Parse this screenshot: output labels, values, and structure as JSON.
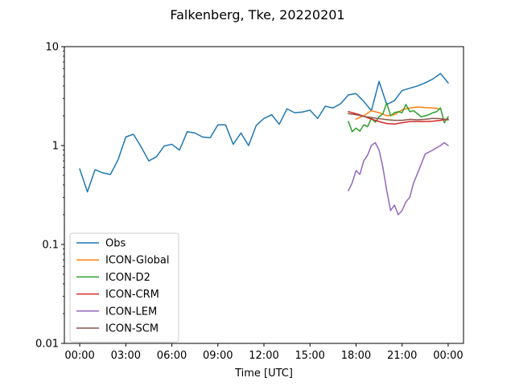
{
  "chart_data": {
    "type": "line",
    "title": "Falkenberg, Tke, 20220201",
    "xlabel": "Time [UTC]",
    "ylabel": "",
    "x_unit": "hours",
    "xlim": [
      -1.0,
      25.0
    ],
    "ylim": [
      0.01,
      10
    ],
    "yscale": "log",
    "xticks": [
      {
        "value": 0,
        "label": "00:00"
      },
      {
        "value": 3,
        "label": "03:00"
      },
      {
        "value": 6,
        "label": "06:00"
      },
      {
        "value": 9,
        "label": "09:00"
      },
      {
        "value": 12,
        "label": "12:00"
      },
      {
        "value": 15,
        "label": "15:00"
      },
      {
        "value": 18,
        "label": "18:00"
      },
      {
        "value": 21,
        "label": "21:00"
      },
      {
        "value": 24,
        "label": "00:00"
      }
    ],
    "yticks": [
      {
        "value": 0.01,
        "label": "0.01"
      },
      {
        "value": 0.1,
        "label": "0.1"
      },
      {
        "value": 1,
        "label": "1"
      },
      {
        "value": 10,
        "label": "10"
      }
    ],
    "grid": false,
    "legend_position": "lower-left",
    "series": [
      {
        "name": "Obs",
        "color": "#1f77b4",
        "x": [
          0.0,
          0.5,
          1.0,
          1.5,
          2.0,
          2.5,
          3.0,
          3.5,
          4.0,
          4.5,
          5.0,
          5.5,
          6.0,
          6.5,
          7.0,
          7.5,
          8.0,
          8.5,
          9.0,
          9.5,
          10.0,
          10.5,
          11.0,
          11.5,
          12.0,
          12.5,
          13.0,
          13.5,
          14.0,
          14.5,
          15.0,
          15.5,
          16.0,
          16.5,
          17.0,
          17.5,
          18.0,
          18.5,
          19.0,
          19.5,
          20.0,
          20.5,
          21.0,
          21.5,
          22.0,
          22.5,
          23.0,
          23.5,
          24.0
        ],
        "y": [
          0.58,
          0.34,
          0.57,
          0.53,
          0.51,
          0.72,
          1.22,
          1.3,
          0.97,
          0.7,
          0.77,
          0.99,
          1.03,
          0.9,
          1.38,
          1.34,
          1.22,
          1.2,
          1.62,
          1.62,
          1.03,
          1.34,
          1.0,
          1.6,
          1.88,
          2.05,
          1.64,
          2.35,
          2.15,
          2.18,
          2.28,
          1.88,
          2.5,
          2.4,
          2.65,
          3.25,
          3.35,
          2.8,
          2.25,
          4.45,
          2.6,
          2.85,
          3.6,
          3.8,
          4.0,
          4.3,
          4.7,
          5.35,
          4.3
        ]
      },
      {
        "name": "ICON-Global",
        "color": "#ff7f0e",
        "x": [
          18.0,
          18.5,
          19.0,
          19.5,
          20.0,
          20.5,
          21.0,
          21.5,
          22.0,
          22.5,
          23.0,
          23.5
        ],
        "y": [
          1.85,
          2.0,
          2.25,
          2.15,
          2.0,
          2.05,
          2.3,
          2.4,
          2.45,
          2.42,
          2.4,
          2.35
        ]
      },
      {
        "name": "ICON-D2",
        "color": "#2ca02c",
        "x": [
          17.5,
          17.75,
          18.0,
          18.25,
          18.5,
          18.75,
          19.0,
          19.25,
          19.5,
          19.75,
          20.0,
          20.25,
          20.5,
          20.75,
          21.0,
          21.25,
          21.5,
          21.75,
          22.0,
          22.25,
          22.5,
          22.75,
          23.0,
          23.25,
          23.5,
          23.75,
          24.0
        ],
        "y": [
          1.75,
          1.38,
          1.5,
          1.4,
          1.62,
          1.55,
          1.88,
          1.72,
          1.95,
          2.1,
          2.7,
          2.0,
          2.15,
          2.2,
          2.15,
          2.6,
          2.2,
          2.25,
          2.1,
          1.95,
          2.0,
          2.05,
          2.15,
          2.2,
          2.4,
          1.7,
          1.95
        ]
      },
      {
        "name": "ICON-CRM",
        "color": "#d62728",
        "x": [
          17.5,
          18.0,
          18.5,
          19.0,
          19.5,
          20.0,
          20.5,
          21.0,
          21.5,
          22.0,
          22.5,
          23.0,
          23.5,
          24.0
        ],
        "y": [
          2.2,
          2.1,
          1.98,
          1.85,
          1.75,
          1.67,
          1.65,
          1.7,
          1.75,
          1.75,
          1.75,
          1.76,
          1.8,
          1.85
        ]
      },
      {
        "name": "ICON-LEM",
        "color": "#9467bd",
        "x": [
          17.5,
          17.75,
          18.0,
          18.25,
          18.5,
          18.75,
          19.0,
          19.25,
          19.5,
          19.75,
          20.0,
          20.25,
          20.5,
          20.75,
          21.0,
          21.25,
          21.5,
          21.75,
          22.0,
          22.5,
          23.0,
          23.25,
          23.5,
          23.75,
          24.0
        ],
        "y": [
          0.35,
          0.42,
          0.56,
          0.51,
          0.7,
          0.8,
          1.0,
          1.07,
          0.9,
          0.6,
          0.35,
          0.22,
          0.25,
          0.2,
          0.22,
          0.27,
          0.3,
          0.42,
          0.52,
          0.82,
          0.9,
          0.95,
          1.0,
          1.07,
          1.0
        ]
      },
      {
        "name": "ICON-SCM",
        "color": "#8c564b",
        "x": [
          17.5,
          18.0,
          18.5,
          19.0,
          19.5,
          20.0,
          20.5,
          21.0,
          21.5,
          22.0,
          22.5,
          23.0,
          23.5,
          24.0
        ],
        "y": [
          2.1,
          2.05,
          1.97,
          1.92,
          1.87,
          1.83,
          1.8,
          1.8,
          1.84,
          1.82,
          1.84,
          1.88,
          1.87,
          1.82
        ]
      }
    ]
  }
}
